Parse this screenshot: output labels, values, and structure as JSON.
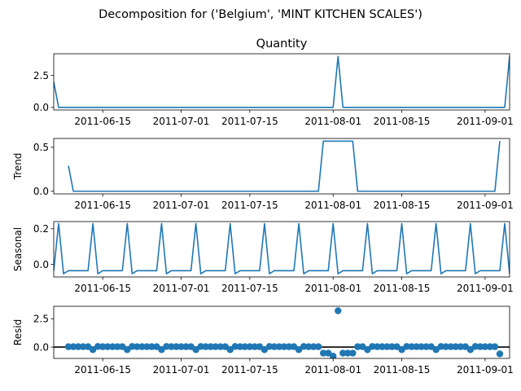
{
  "figure": {
    "suptitle": "Decomposition for ('Belgium', 'MINT KITCHEN SCALES')"
  },
  "colors": {
    "series": "#1f77b4",
    "zero_line": "#000000",
    "axes": "#000000"
  },
  "chart_data": [
    {
      "type": "line",
      "title": "Quantity",
      "ylabel": "",
      "x_start": "2011-06-05",
      "x_end": "2011-09-06",
      "ylim": [
        -0.2,
        4.2
      ],
      "yticks": [
        0.0,
        2.5
      ],
      "ytick_labels": [
        "0.0",
        "2.5"
      ],
      "xticks": [
        "2011-06-15",
        "2011-07-01",
        "2011-07-15",
        "2011-08-01",
        "2011-08-15",
        "2011-09-01"
      ],
      "series": [
        {
          "points": [
            [
              "2011-06-05",
              2.0
            ],
            [
              "2011-06-06",
              0.0
            ],
            [
              "2011-08-01",
              0.0
            ],
            [
              "2011-08-02",
              4.0
            ],
            [
              "2011-08-03",
              0.0
            ],
            [
              "2011-09-05",
              0.0
            ],
            [
              "2011-09-06",
              4.0
            ]
          ]
        }
      ]
    },
    {
      "type": "line",
      "title": "",
      "ylabel": "Trend",
      "x_start": "2011-06-05",
      "x_end": "2011-09-06",
      "ylim": [
        -0.03,
        0.6
      ],
      "yticks": [
        0.0,
        0.5
      ],
      "ytick_labels": [
        "0.0",
        "0.5"
      ],
      "xticks": [
        "2011-06-15",
        "2011-07-01",
        "2011-07-15",
        "2011-08-01",
        "2011-08-15",
        "2011-09-01"
      ],
      "series": [
        {
          "points": [
            [
              "2011-06-08",
              0.29
            ],
            [
              "2011-06-09",
              0.0
            ],
            [
              "2011-07-29",
              0.0
            ],
            [
              "2011-07-30",
              0.57
            ],
            [
              "2011-08-05",
              0.57
            ],
            [
              "2011-08-06",
              0.0
            ],
            [
              "2011-09-03",
              0.0
            ],
            [
              "2011-09-04",
              0.57
            ]
          ]
        }
      ]
    },
    {
      "type": "line",
      "title": "",
      "ylabel": "Seasonal",
      "x_start": "2011-06-05",
      "x_end": "2011-09-06",
      "ylim": [
        -0.07,
        0.24
      ],
      "yticks": [
        0.0,
        0.2
      ],
      "ytick_labels": [
        "0.0",
        "0.2"
      ],
      "xticks": [
        "2011-06-15",
        "2011-07-01",
        "2011-07-15",
        "2011-08-01",
        "2011-08-15",
        "2011-09-01"
      ],
      "period_days": 7,
      "weekly_pattern": [
        -0.035,
        0.229,
        -0.052,
        -0.035,
        -0.035,
        -0.035,
        -0.035
      ],
      "series": []
    },
    {
      "type": "scatter",
      "title": "",
      "ylabel": "Resid",
      "x_start": "2011-06-05",
      "x_end": "2011-09-06",
      "ylim": [
        -1.0,
        3.6
      ],
      "yticks": [
        0.0,
        2.5
      ],
      "ytick_labels": [
        "0.0",
        "2.5"
      ],
      "xticks": [
        "2011-06-15",
        "2011-07-01",
        "2011-07-15",
        "2011-08-01",
        "2011-08-15",
        "2011-09-01"
      ],
      "zero_line": true,
      "series": []
    }
  ]
}
